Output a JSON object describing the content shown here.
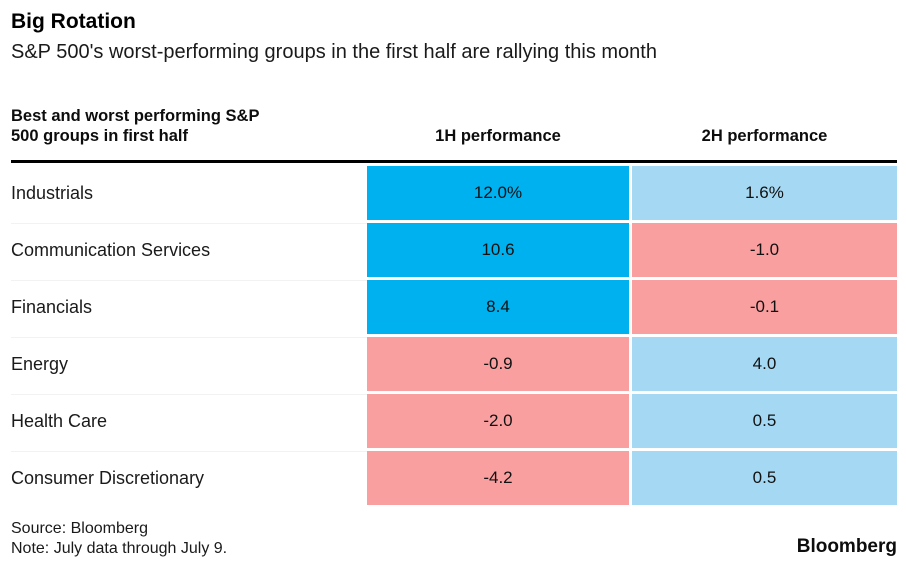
{
  "header": {
    "title": "Big Rotation",
    "subtitle": "S&P 500's worst-performing groups in the first half are rallying this month"
  },
  "table": {
    "header": {
      "groups": "Best and worst performing S&P 500 groups in first half",
      "h1": "1H performance",
      "h2": "2H performance"
    },
    "rows": [
      {
        "label": "Industrials",
        "h1": {
          "text": "12.0%",
          "tone": "blue"
        },
        "h2": {
          "text": "1.6%",
          "tone": "lightblue"
        }
      },
      {
        "label": "Communication Services",
        "h1": {
          "text": "10.6",
          "tone": "blue"
        },
        "h2": {
          "text": "-1.0",
          "tone": "red"
        }
      },
      {
        "label": "Financials",
        "h1": {
          "text": "8.4",
          "tone": "blue"
        },
        "h2": {
          "text": "-0.1",
          "tone": "red"
        }
      },
      {
        "label": "Energy",
        "h1": {
          "text": "-0.9",
          "tone": "red"
        },
        "h2": {
          "text": "4.0",
          "tone": "lightblue"
        }
      },
      {
        "label": "Health Care",
        "h1": {
          "text": "-2.0",
          "tone": "red"
        },
        "h2": {
          "text": "0.5",
          "tone": "lightblue"
        }
      },
      {
        "label": "Consumer Discretionary",
        "h1": {
          "text": "-4.2",
          "tone": "red"
        },
        "h2": {
          "text": "0.5",
          "tone": "lightblue"
        }
      }
    ]
  },
  "colors": {
    "blue": "#00b1f0",
    "lightblue": "#a5d8f2",
    "red": "#fa9f9f"
  },
  "footer": {
    "source": "Source: Bloomberg",
    "note": "Note: July data through July 9.",
    "brand": "Bloomberg"
  },
  "chart_data": {
    "type": "heatmap",
    "title": "Big Rotation",
    "subtitle": "S&P 500's worst-performing groups in the first half are rallying this month",
    "row_header": "Best and worst performing S&P 500 groups in first half",
    "categories": [
      "Industrials",
      "Communication Services",
      "Financials",
      "Energy",
      "Health Care",
      "Consumer Discretionary"
    ],
    "series": [
      {
        "name": "1H performance",
        "values": [
          12.0,
          10.6,
          8.4,
          -0.9,
          -2.0,
          -4.2
        ]
      },
      {
        "name": "2H performance",
        "values": [
          1.6,
          -1.0,
          -0.1,
          4.0,
          0.5,
          0.5
        ]
      }
    ],
    "units": "%",
    "cell_color_rule": "strong blue = large positive, light blue = small positive, light red = negative",
    "source": "Bloomberg",
    "note": "July data through July 9."
  }
}
